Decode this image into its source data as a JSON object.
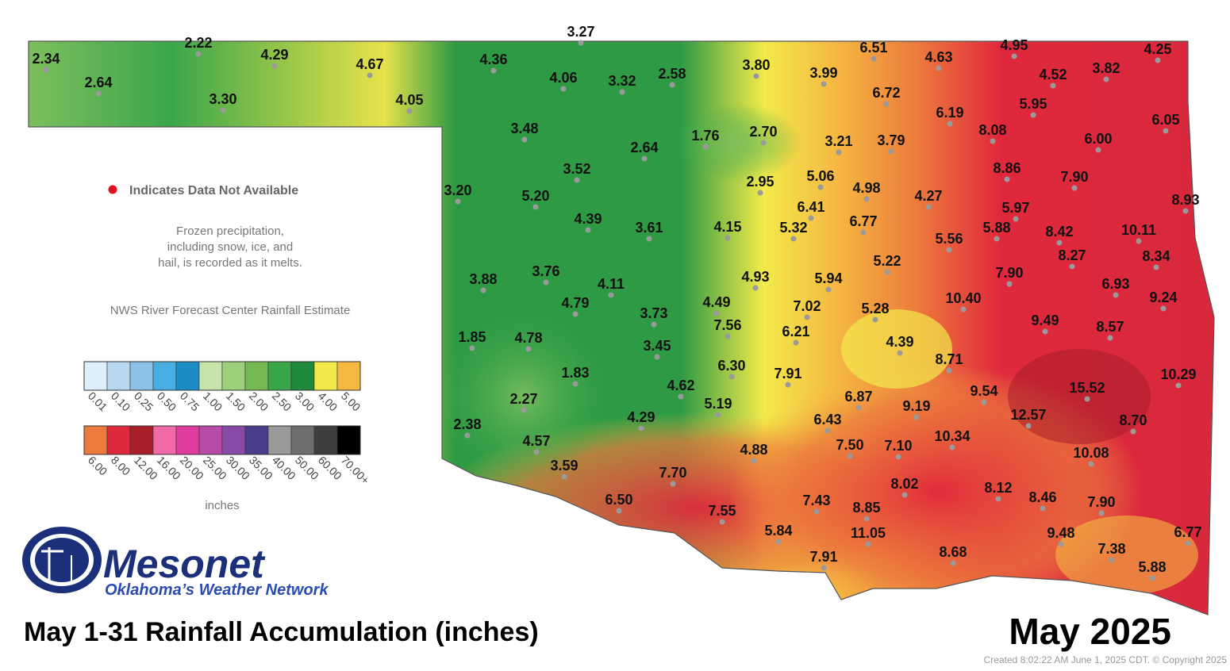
{
  "title": "May 1-31 Rainfall Accumulation (inches)",
  "month": "May 2025",
  "created": "Created 8:02:22 AM June 1, 2025 CDT. © Copyright 2025",
  "missing_note": "Indicates Data Not Available",
  "frozen_note": [
    "Frozen precipitation,",
    "including snow, ice, and",
    "hail, is recorded as it melts."
  ],
  "source": "NWS River Forecast Center Rainfall Estimate",
  "logo": {
    "name": "Mesonet",
    "tagline": "Oklahoma’s Weather Network"
  },
  "legend": {
    "unit": "inches",
    "rows": [
      [
        {
          "label": "0.01",
          "color": "#ddeffa"
        },
        {
          "label": "0.10",
          "color": "#b8d8f0"
        },
        {
          "label": "0.25",
          "color": "#8cc2e8"
        },
        {
          "label": "0.50",
          "color": "#48ade0"
        },
        {
          "label": "0.75",
          "color": "#1b8cc4"
        },
        {
          "label": "1.00",
          "color": "#c6e3a9"
        },
        {
          "label": "1.50",
          "color": "#9dd07d"
        },
        {
          "label": "2.00",
          "color": "#74b951"
        },
        {
          "label": "2.50",
          "color": "#3aa64a"
        },
        {
          "label": "3.00",
          "color": "#1f8a3c"
        },
        {
          "label": "4.00",
          "color": "#f2ea4a"
        },
        {
          "label": "5.00",
          "color": "#f5b942"
        }
      ],
      [
        {
          "label": "6.00",
          "color": "#ec7a3c"
        },
        {
          "label": "8.00",
          "color": "#e0283c"
        },
        {
          "label": "12.00",
          "color": "#a81e2a"
        },
        {
          "label": "16.00",
          "color": "#f06aa8"
        },
        {
          "label": "20.00",
          "color": "#e03ca0"
        },
        {
          "label": "25.00",
          "color": "#b84aa8"
        },
        {
          "label": "30.00",
          "color": "#8a4aa8"
        },
        {
          "label": "35.00",
          "color": "#4a3e8c"
        },
        {
          "label": "40.00",
          "color": "#9a9a9a"
        },
        {
          "label": "50.00",
          "color": "#6e6e6e"
        },
        {
          "label": "60.00",
          "color": "#3e3e3e"
        },
        {
          "label": "70.00+",
          "color": "#000000"
        }
      ]
    ]
  },
  "stations": [
    "2.34",
    "2.22",
    "4.29",
    "4.67",
    "2.64",
    "3.30",
    "4.05",
    "3.27",
    "4.36",
    "4.06",
    "3.32",
    "2.58",
    "3.80",
    "3.99",
    "6.51",
    "4.63",
    "4.95",
    "4.52",
    "3.82",
    "4.25",
    "6.72",
    "6.19",
    "5.95",
    "6.05",
    "3.48",
    "2.64",
    "1.76",
    "2.70",
    "3.21",
    "3.79",
    "8.08",
    "6.00",
    "3.52",
    "8.86",
    "7.90",
    "3.20",
    "2.95",
    "5.06",
    "4.98",
    "4.27",
    "8.93",
    "5.20",
    "6.41",
    "5.97",
    "4.39",
    "3.61",
    "4.15",
    "5.32",
    "6.77",
    "5.88",
    "8.42",
    "10.11",
    "5.56",
    "8.27",
    "8.34",
    "5.22",
    "3.88",
    "3.76",
    "4.93",
    "5.94",
    "7.90",
    "4.11",
    "6.93",
    "4.49",
    "7.02",
    "10.40",
    "9.24",
    "4.79",
    "5.28",
    "3.73",
    "7.56",
    "6.21",
    "9.49",
    "8.57",
    "1.85",
    "4.78",
    "3.45",
    "4.39",
    "8.71",
    "6.30",
    "7.91",
    "10.29",
    "1.83",
    "4.62",
    "9.54",
    "15.52",
    "6.87",
    "5.19",
    "9.19",
    "12.57",
    "2.27",
    "8.70",
    "4.29",
    "6.43",
    "2.38",
    "10.34",
    "10.08",
    "7.50",
    "7.10",
    "4.57",
    "4.88",
    "3.59",
    "7.70",
    "8.02",
    "8.12",
    "6.50",
    "7.43",
    "8.85",
    "8.46",
    "7.90",
    "7.55",
    "5.84",
    "11.05",
    "9.48",
    "6.77",
    "7.38",
    "8.68",
    "7.91",
    "5.88"
  ]
}
